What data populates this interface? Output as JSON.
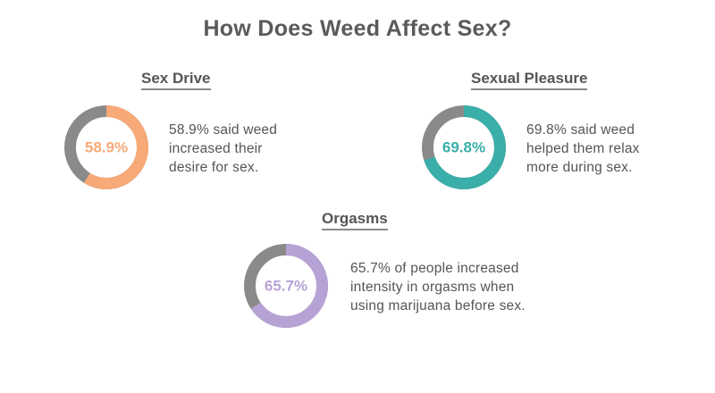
{
  "title": "How Does Weed Affect Sex?",
  "colors": {
    "track": "#8a8a8a",
    "text": "#555555"
  },
  "chart_data": [
    {
      "type": "pie",
      "title": "Sex Drive",
      "value": 58.9,
      "label": "58.9%",
      "color": "#f7a977",
      "description": "58.9% said weed\nincreased their\ndesire for sex."
    },
    {
      "type": "pie",
      "title": "Sexual Pleasure",
      "value": 69.8,
      "label": "69.8%",
      "color": "#3aaea8",
      "description": "69.8% said weed\nhelped them relax\nmore during sex."
    },
    {
      "type": "pie",
      "title": "Orgasms",
      "value": 65.7,
      "label": "65.7%",
      "color": "#b7a2d5",
      "description": "65.7% of people increased\nintensity in orgasms when\nusing marijuana before sex."
    }
  ]
}
